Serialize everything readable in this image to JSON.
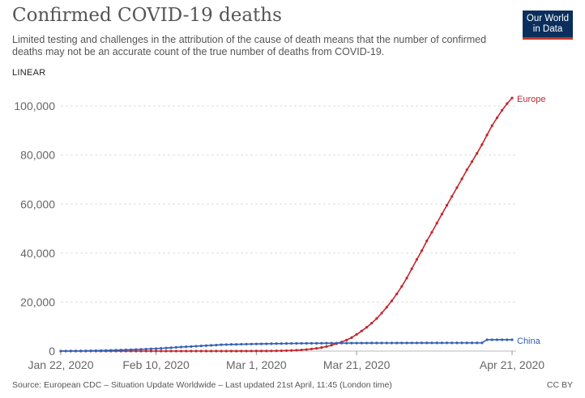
{
  "header": {
    "title": "Confirmed COVID-19 deaths",
    "subtitle": "Limited testing and challenges in the attribution of the cause of death means that the number of confirmed deaths may not be an accurate count of the true number of deaths from COVID-19.",
    "logo_line1": "Our World",
    "logo_line2": "in Data",
    "scale_label": "LINEAR"
  },
  "footer": {
    "source": "Source: European CDC – Situation Update Worldwide – Last updated 21st April, 11:45 (London time)",
    "license": "CC BY"
  },
  "colors": {
    "europe": "#c1272d",
    "china": "#3461b5",
    "grid": "#dddddd",
    "logo_bg": "#0b2f5c",
    "logo_accent": "#c0392b"
  },
  "chart_data": {
    "type": "line",
    "x_start": "2020-01-22",
    "x_end": "2020-04-21",
    "xlim_days": [
      0,
      90
    ],
    "ylim": [
      0,
      105000
    ],
    "y_ticks": [
      0,
      20000,
      40000,
      60000,
      80000,
      100000
    ],
    "y_tick_labels": [
      "0",
      "20,000",
      "40,000",
      "60,000",
      "80,000",
      "100,000"
    ],
    "x_tick_labels": [
      "Jan 22, 2020",
      "Feb 10, 2020",
      "Mar 1, 2020",
      "Mar 21, 2020",
      "Apr 21, 2020"
    ],
    "x_tick_dates": [
      "2020-01-22",
      "2020-02-10",
      "2020-03-01",
      "2020-03-21",
      "2020-04-21"
    ],
    "grid": true,
    "series": [
      {
        "name": "Europe",
        "color": "#c1272d",
        "values": [
          0,
          0,
          0,
          0,
          0,
          0,
          0,
          0,
          0,
          0,
          0,
          0,
          0,
          0,
          0,
          0,
          0,
          0,
          0,
          0,
          0,
          0,
          0,
          0,
          0,
          1,
          1,
          1,
          1,
          1,
          1,
          1,
          2,
          3,
          5,
          7,
          12,
          17,
          21,
          29,
          35,
          52,
          65,
          100,
          140,
          190,
          250,
          350,
          480,
          640,
          850,
          1100,
          1450,
          1850,
          2400,
          3000,
          3700,
          4500,
          5500,
          6800,
          8200,
          9700,
          11400,
          13300,
          15500,
          17900,
          20500,
          23300,
          26400,
          29800,
          33600,
          37400,
          41000,
          45000,
          48500,
          52200,
          55900,
          59500,
          63100,
          66700,
          70300,
          74000,
          77300,
          80700,
          84300,
          88200,
          92000,
          95200,
          98300,
          101000,
          103300
        ]
      },
      {
        "name": "China",
        "color": "#3461b5",
        "values": [
          17,
          25,
          41,
          56,
          80,
          106,
          132,
          170,
          213,
          259,
          304,
          361,
          425,
          490,
          563,
          636,
          722,
          811,
          908,
          1016,
          1113,
          1259,
          1380,
          1523,
          1665,
          1770,
          1868,
          2004,
          2118,
          2236,
          2345,
          2442,
          2592,
          2663,
          2715,
          2744,
          2788,
          2835,
          2870,
          2912,
          2943,
          2981,
          3012,
          3042,
          3070,
          3097,
          3119,
          3136,
          3158,
          3169,
          3176,
          3189,
          3194,
          3231,
          3242,
          3249,
          3253,
          3261,
          3270,
          3277,
          3281,
          3287,
          3292,
          3295,
          3300,
          3304,
          3305,
          3312,
          3318,
          3322,
          3326,
          3330,
          3333,
          3335,
          3335,
          3337,
          3339,
          3340,
          3342,
          3342,
          3342,
          3342,
          3342,
          3342,
          3343,
          4632,
          4632,
          4632,
          4632,
          4632,
          4632
        ]
      }
    ]
  }
}
